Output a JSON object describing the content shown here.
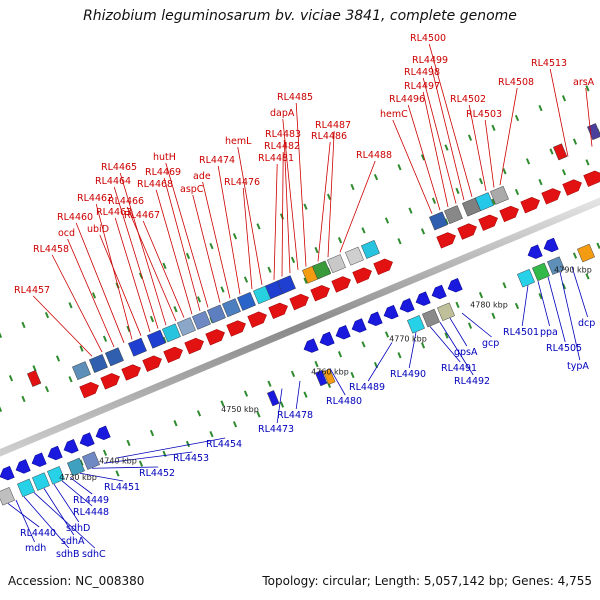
{
  "title": "Rhizobium leguminosarum bv. viciae 3841, complete genome",
  "footer": {
    "accession": "Accession: NC_008380",
    "summary": "Topology: circular; Length: 5,057,142 bp; Genes: 4,755"
  },
  "colors": {
    "forward_label": "#cc0000",
    "reverse_label": "#0000bb",
    "backbone": "#999999",
    "tick": "#2e8b2e"
  },
  "scale_labels": [
    "4730 kbp",
    "4740 kbp",
    "4750 kbp",
    "4760 kbp",
    "4770 kbp",
    "4780 kbp",
    "4790 kbp"
  ],
  "forward_labels": [
    "RL4457",
    "RL4458",
    "ocd",
    "RL4460",
    "RL4462",
    "ubiD",
    "RL4463",
    "RL4464",
    "RL4465",
    "RL4466",
    "RL4467",
    "RL4468",
    "RL4469",
    "hutH",
    "aspC",
    "ade",
    "RL4474",
    "RL4476",
    "hemL",
    "RL4481",
    "RL4482",
    "RL4483",
    "dapA",
    "RL4485",
    "RL4486",
    "RL4487",
    "RL4488",
    "hemC",
    "RL4496",
    "RL4497",
    "RL4498",
    "RL4499",
    "RL4500",
    "RL4502",
    "RL4503",
    "RL4508",
    "RL4513",
    "arsA"
  ],
  "reverse_labels": [
    "RL4440",
    "mdh",
    "sdhB",
    "sdhC",
    "sdhA",
    "sdhD",
    "RL4448",
    "RL4449",
    "RL4451",
    "RL4452",
    "RL4453",
    "RL4454",
    "RL4473",
    "RL4478",
    "RL4480",
    "RL4489",
    "RL4490",
    "RL4491",
    "RL4492",
    "gpsA",
    "gcp",
    "RL4501",
    "ppa",
    "RL4505",
    "typA",
    "dcp"
  ]
}
